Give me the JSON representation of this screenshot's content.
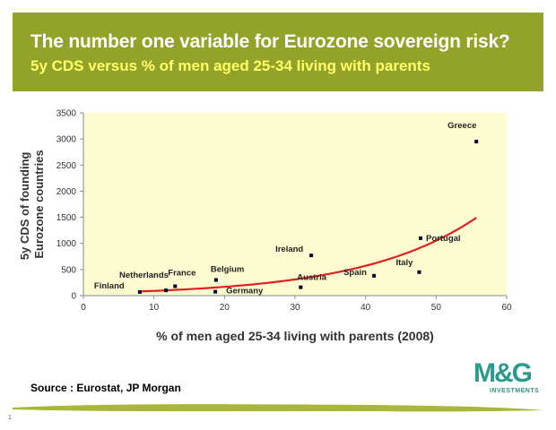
{
  "header": {
    "title": "The number one variable for Eurozone sovereign risk?",
    "subtitle": "5y CDS versus % of men aged 25-34 living with parents"
  },
  "colors": {
    "header_bg": "#93a228",
    "plot_bg": "#fdfcd1",
    "trend_line": "#e02020",
    "points": "#000033",
    "logo": "#2a9a8c"
  },
  "chart_data": {
    "type": "scatter",
    "title": "",
    "xlabel": "% of men aged 25-34 living with parents (2008)",
    "ylabel_lines": [
      "5y CDS of founding",
      "Eurozone countries"
    ],
    "xlim": [
      0,
      60
    ],
    "ylim": [
      0,
      3500
    ],
    "xticks": [
      0,
      10,
      20,
      30,
      40,
      50,
      60
    ],
    "yticks": [
      0,
      500,
      1000,
      1500,
      2000,
      2500,
      3000,
      3500
    ],
    "grid": false,
    "points": [
      {
        "label": "Finland",
        "x": 8,
        "y": 70
      },
      {
        "label": "Netherlands",
        "x": 11.7,
        "y": 100
      },
      {
        "label": "France",
        "x": 13,
        "y": 180
      },
      {
        "label": "Belgium",
        "x": 18.8,
        "y": 300
      },
      {
        "label": "Germany",
        "x": 18.7,
        "y": 75
      },
      {
        "label": "Austria",
        "x": 30.8,
        "y": 160
      },
      {
        "label": "Ireland",
        "x": 32.3,
        "y": 770
      },
      {
        "label": "Spain",
        "x": 41.2,
        "y": 380
      },
      {
        "label": "Italy",
        "x": 47.6,
        "y": 450
      },
      {
        "label": "Portugal",
        "x": 47.8,
        "y": 1100
      },
      {
        "label": "Greece",
        "x": 55.7,
        "y": 2950
      }
    ],
    "trend": {
      "type": "exponential",
      "color": "#e02020"
    }
  },
  "source": "Source : Eurostat, JP Morgan",
  "logo": {
    "text": "M&G",
    "sub": "INVESTMENTS"
  },
  "page_number": "1"
}
